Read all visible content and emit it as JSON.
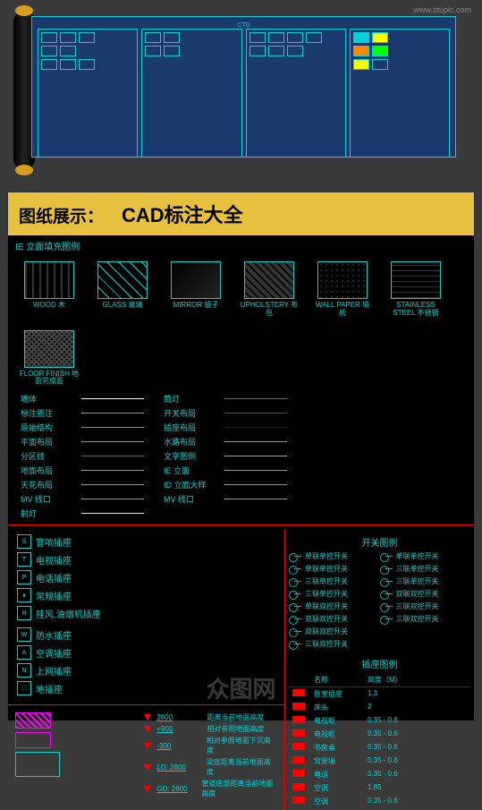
{
  "url": "www.ztupic.com",
  "blueprint_title": "CTD",
  "header": {
    "t1": "图纸展示：",
    "t2": "CAD标注大全"
  },
  "section1_label": "IE 立面填充图例",
  "materials": [
    {
      "key": "wood",
      "en": "WOOD",
      "cn": "木"
    },
    {
      "key": "glass",
      "en": "GLASS",
      "cn": "玻璃"
    },
    {
      "key": "mirror",
      "en": "MIRROR",
      "cn": "镜子"
    },
    {
      "key": "uphol",
      "en": "UPHOLSTERY",
      "cn": "布包"
    },
    {
      "key": "wall",
      "en": "WALL PAPER",
      "cn": "墙纸"
    },
    {
      "key": "steel",
      "en": "STAINLESS STEEL",
      "cn": "不锈钢"
    },
    {
      "key": "floor",
      "en": "FLOOR FINISH",
      "cn": "地面完成面"
    }
  ],
  "line_legend_left": [
    {
      "label": "墙体",
      "color": "#ffffff"
    },
    {
      "label": "标注圈注",
      "color": "#00d4d4"
    },
    {
      "label": "原始结构",
      "color": "#888888"
    },
    {
      "label": "平面布局",
      "color": "#00d4d4"
    },
    {
      "label": "分区线",
      "color": "#666666"
    },
    {
      "label": "地面布局",
      "color": "#00d4d4"
    },
    {
      "label": "天花布局",
      "color": "#00d4d4"
    },
    {
      "label": "MV 线口",
      "color": "#00d4d4"
    },
    {
      "label": "射灯",
      "color": "#ffff00"
    }
  ],
  "line_legend_right": [
    {
      "label": "筒灯",
      "color": "#ff00ff"
    },
    {
      "label": "开关布局",
      "color": "#ff0000"
    },
    {
      "label": "插座布局",
      "color": "#0000ff"
    },
    {
      "label": "水路布局",
      "color": "#00ff00"
    },
    {
      "label": "文字图例",
      "color": "#ff8800"
    },
    {
      "label": "IE 立面",
      "color": "#00d4d4"
    },
    {
      "label": "ID 立面大样",
      "color": "#00d4d4"
    },
    {
      "label": "MV 线口",
      "color": "#00d4d4"
    }
  ],
  "sockets": [
    {
      "icon": "S",
      "label": "音响插座"
    },
    {
      "icon": "T",
      "label": "电视插座"
    },
    {
      "icon": "P",
      "label": "电话插座"
    },
    {
      "icon": "●",
      "label": "常规插座"
    },
    {
      "icon": "H",
      "label": "挂风.油烟机插座"
    },
    {
      "icon": "",
      "label": ""
    },
    {
      "icon": "W",
      "label": "防水插座"
    },
    {
      "icon": "A",
      "label": "空调插座"
    },
    {
      "icon": "N",
      "label": "上网插座"
    },
    {
      "icon": "□",
      "label": "地插座"
    }
  ],
  "switch_title": "开关图例",
  "switches_left": [
    "单联单控开关",
    "单联单控开关",
    "三联单控开关",
    "三联单控开关",
    "单联双控开关",
    "双联双控开关",
    "双联双控开关",
    "三联双控开关"
  ],
  "switches_right": [
    "单联单控开关",
    "三联单控开关",
    "三联单控开关",
    "双联双控开关",
    "三联双控开关",
    "三联双控开关"
  ],
  "dims": [
    {
      "val": "2800",
      "desc": "距离当前地面高度"
    },
    {
      "val": "+900",
      "desc": "相对参照地面高度"
    },
    {
      "val": "-300",
      "desc": "相对参照地面下沉高度"
    },
    {
      "val": "LD: 2800",
      "desc": "梁底距离当前地面高度"
    },
    {
      "val": "GD: 2800",
      "desc": "管道底部距离当前地面高度"
    }
  ],
  "socket_table": {
    "title": "插座图例",
    "headers": [
      "",
      "名称",
      "高度（M）"
    ],
    "rows": [
      [
        "卧室插座",
        "1.3"
      ],
      [
        "床头",
        "2"
      ],
      [
        "电视柜",
        "0.35 - 0.6"
      ],
      [
        "电视柜",
        "0.35 - 0.6"
      ],
      [
        "书房桌",
        "0.35 - 0.6"
      ],
      [
        "背景墙",
        "0.35 - 0.6"
      ],
      [
        "电话",
        "0.35 - 0.6"
      ],
      [
        "空调",
        "1.85"
      ],
      [
        "空调",
        "0.35 - 0.6"
      ]
    ]
  },
  "watermark": "众图网"
}
